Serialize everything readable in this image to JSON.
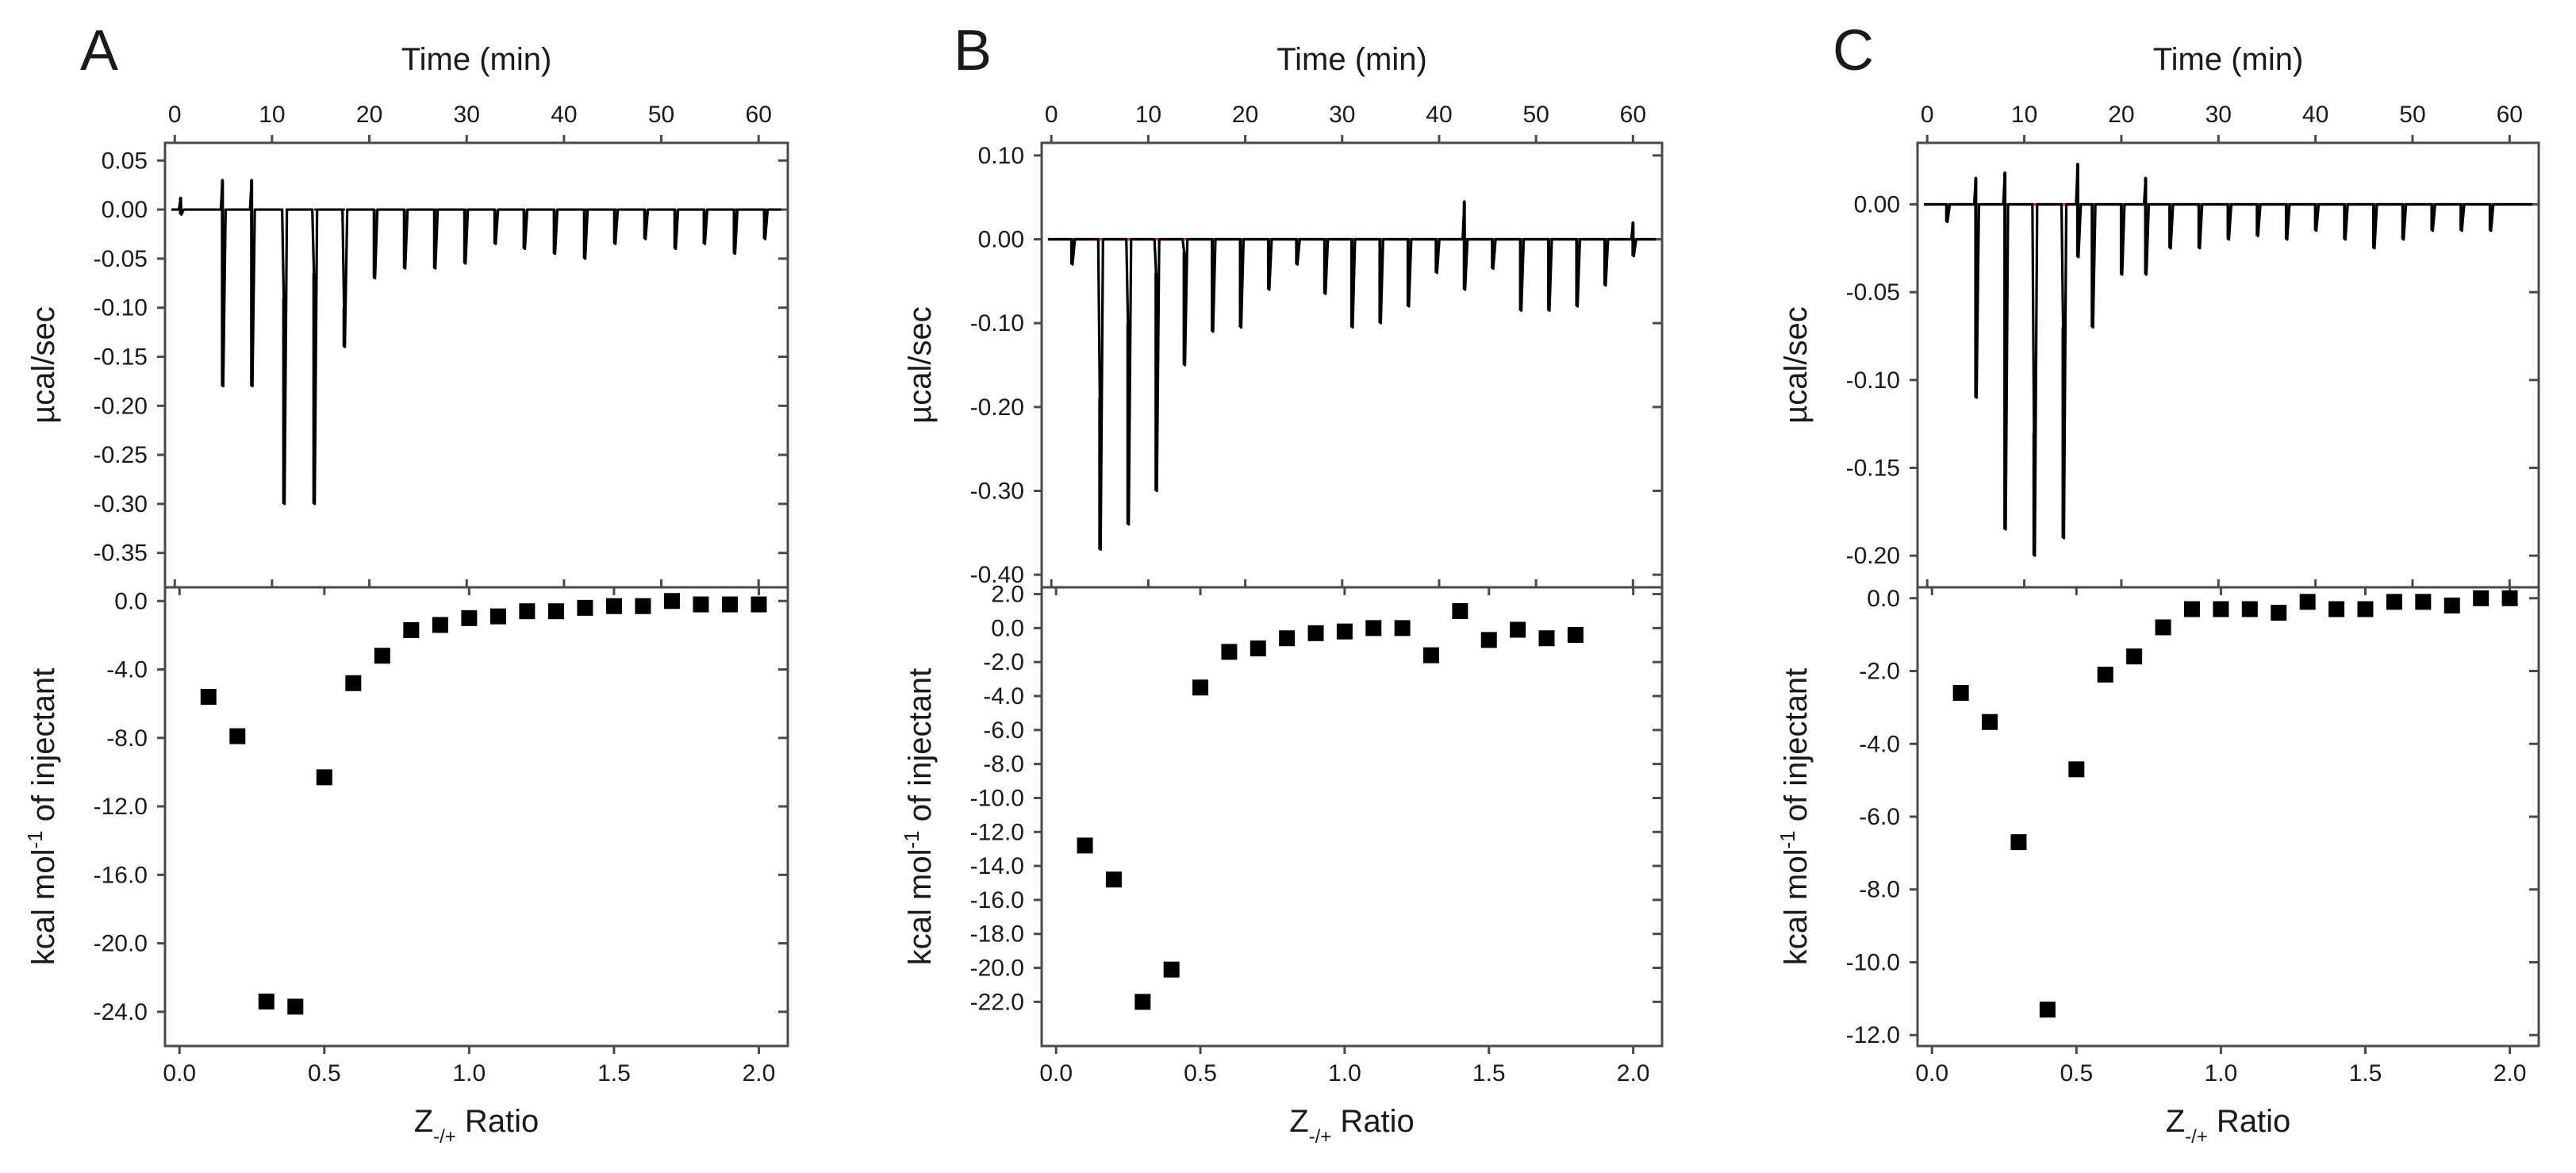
{
  "colors": {
    "data": "#000000",
    "axis": "#4a4a4a",
    "baseline_red": "#ff2a2a",
    "baseline_dotted": "#000000"
  },
  "chart_data": [
    {
      "panel": "A",
      "type": "line",
      "title": "",
      "xlabel": "Time (min)",
      "ylabel": "µcal/sec",
      "xlim": [
        -1,
        63
      ],
      "ylim": [
        -0.385,
        0.068
      ],
      "xticks": [
        0,
        10,
        20,
        30,
        40,
        50,
        60
      ],
      "xtick_labels": [
        "0",
        "10",
        "20",
        "30",
        "40",
        "50",
        "60"
      ],
      "yticks": [
        0.05,
        0.0,
        -0.05,
        -0.1,
        -0.15,
        -0.2,
        -0.25,
        -0.3,
        -0.35
      ],
      "ytick_labels": [
        "0.05",
        "0.00",
        "-0.05",
        "-0.10",
        "-0.15",
        "-0.20",
        "-0.25",
        "-0.30",
        "-0.35"
      ],
      "baseline": {
        "y": 0.0,
        "style": "dotted",
        "color": "#000000"
      },
      "injections": [
        {
          "t": 0.6,
          "min": -0.005,
          "max": 0.012
        },
        {
          "t": 4.9,
          "min": -0.18,
          "max": 0.03
        },
        {
          "t": 7.9,
          "min": -0.18,
          "max": 0.03
        },
        {
          "t": 11.2,
          "min": -0.3,
          "max": -0.09
        },
        {
          "t": 14.3,
          "min": -0.3,
          "max": -0.065
        },
        {
          "t": 17.4,
          "min": -0.14,
          "max": -0.1
        },
        {
          "t": 20.5,
          "min": -0.07,
          "max": 0.0
        },
        {
          "t": 23.6,
          "min": -0.06,
          "max": 0.0
        },
        {
          "t": 26.7,
          "min": -0.06,
          "max": 0.0
        },
        {
          "t": 29.8,
          "min": -0.055,
          "max": 0.0
        },
        {
          "t": 32.9,
          "min": -0.035,
          "max": 0.0
        },
        {
          "t": 35.9,
          "min": -0.04,
          "max": 0.0
        },
        {
          "t": 39.0,
          "min": -0.045,
          "max": 0.0
        },
        {
          "t": 42.1,
          "min": -0.05,
          "max": 0.0
        },
        {
          "t": 45.2,
          "min": -0.035,
          "max": 0.0
        },
        {
          "t": 48.3,
          "min": -0.03,
          "max": 0.0
        },
        {
          "t": 51.4,
          "min": -0.04,
          "max": 0.0
        },
        {
          "t": 54.4,
          "min": -0.035,
          "max": 0.0
        },
        {
          "t": 57.5,
          "min": -0.045,
          "max": 0.0
        },
        {
          "t": 60.6,
          "min": -0.03,
          "max": 0.0
        }
      ],
      "binding": {
        "xlabel": "Z-/+ Ratio",
        "ylabel": "kcal mol-1 of injectant",
        "xlim": [
          -0.05,
          2.1
        ],
        "ylim": [
          -26.0,
          0.8
        ],
        "xticks": [
          0.0,
          0.5,
          1.0,
          1.5,
          2.0
        ],
        "xtick_labels": [
          "0.0",
          "0.5",
          "1.0",
          "1.5",
          "2.0"
        ],
        "yticks": [
          0.0,
          -4.0,
          -8.0,
          -12.0,
          -16.0,
          -20.0,
          -24.0
        ],
        "ytick_labels": [
          "0.0",
          "-4.0",
          "-8.0",
          "-12.0",
          "-16.0",
          "-20.0",
          "-24.0"
        ],
        "x": [
          0.1,
          0.2,
          0.3,
          0.4,
          0.5,
          0.6,
          0.7,
          0.8,
          0.9,
          1.0,
          1.1,
          1.2,
          1.3,
          1.4,
          1.5,
          1.6,
          1.7,
          1.8,
          1.9,
          2.0
        ],
        "y": [
          -5.6,
          -7.9,
          -23.4,
          -23.7,
          -10.3,
          -4.8,
          -3.2,
          -1.7,
          -1.4,
          -1.0,
          -0.9,
          -0.6,
          -0.6,
          -0.4,
          -0.3,
          -0.3,
          0.0,
          -0.2,
          -0.2,
          -0.2
        ]
      }
    },
    {
      "panel": "B",
      "type": "line",
      "title": "",
      "xlabel": "Time (min)",
      "ylabel": "µcal/sec",
      "xlim": [
        -1,
        63
      ],
      "ylim": [
        -0.415,
        0.115
      ],
      "xticks": [
        0,
        10,
        20,
        30,
        40,
        50,
        60
      ],
      "xtick_labels": [
        "0",
        "10",
        "20",
        "30",
        "40",
        "50",
        "60"
      ],
      "yticks": [
        0.1,
        0.0,
        -0.1,
        -0.2,
        -0.3,
        -0.4
      ],
      "ytick_labels": [
        "0.10",
        "0.00",
        "-0.10",
        "-0.20",
        "-0.30",
        "-0.40"
      ],
      "baseline": {
        "y": 0.0,
        "style": "solid",
        "color": "#ff2a2a"
      },
      "injections": [
        {
          "t": 2.1,
          "min": -0.03,
          "max": 0.0
        },
        {
          "t": 5.0,
          "min": -0.37,
          "max": -0.19
        },
        {
          "t": 7.9,
          "min": -0.34,
          "max": -0.1
        },
        {
          "t": 10.8,
          "min": -0.3,
          "max": -0.04
        },
        {
          "t": 13.7,
          "min": -0.15,
          "max": -0.015
        },
        {
          "t": 16.6,
          "min": -0.11,
          "max": 0.0
        },
        {
          "t": 19.5,
          "min": -0.105,
          "max": 0.0
        },
        {
          "t": 22.4,
          "min": -0.06,
          "max": 0.0
        },
        {
          "t": 25.3,
          "min": -0.03,
          "max": 0.0
        },
        {
          "t": 28.2,
          "min": -0.065,
          "max": 0.0
        },
        {
          "t": 31.0,
          "min": -0.105,
          "max": 0.0
        },
        {
          "t": 33.9,
          "min": -0.1,
          "max": 0.0
        },
        {
          "t": 36.8,
          "min": -0.08,
          "max": 0.0
        },
        {
          "t": 39.7,
          "min": -0.04,
          "max": 0.0
        },
        {
          "t": 42.6,
          "min": -0.06,
          "max": 0.045
        },
        {
          "t": 45.5,
          "min": -0.035,
          "max": 0.0
        },
        {
          "t": 48.4,
          "min": -0.085,
          "max": 0.0
        },
        {
          "t": 51.3,
          "min": -0.085,
          "max": 0.0
        },
        {
          "t": 54.2,
          "min": -0.08,
          "max": 0.0
        },
        {
          "t": 57.1,
          "min": -0.055,
          "max": 0.0
        },
        {
          "t": 60.0,
          "min": -0.02,
          "max": 0.02
        }
      ],
      "binding": {
        "xlabel": "Z-/+ Ratio",
        "ylabel": "kcal mol-1 of injectant",
        "xlim": [
          -0.05,
          2.1
        ],
        "ylim": [
          -24.6,
          2.4
        ],
        "xticks": [
          0.0,
          0.5,
          1.0,
          1.5,
          2.0
        ],
        "xtick_labels": [
          "0.0",
          "0.5",
          "1.0",
          "1.5",
          "2.0"
        ],
        "yticks": [
          2.0,
          0.0,
          -2.0,
          -4.0,
          -6.0,
          -8.0,
          -10.0,
          -12.0,
          -14.0,
          -16.0,
          -18.0,
          -20.0,
          -22.0
        ],
        "ytick_labels": [
          "2.0",
          "0.0",
          "-2.0",
          "-4.0",
          "-6.0",
          "-8.0",
          "-10.0",
          "-12.0",
          "-14.0",
          "-16.0",
          "-18.0",
          "-20.0",
          "-22.0"
        ],
        "x": [
          0.1,
          0.2,
          0.3,
          0.4,
          0.5,
          0.6,
          0.7,
          0.8,
          0.9,
          1.0,
          1.1,
          1.2,
          1.3,
          1.4,
          1.5,
          1.6,
          1.7,
          1.8
        ],
        "y": [
          -12.8,
          -14.8,
          -22.0,
          -20.1,
          -3.5,
          -1.4,
          -1.2,
          -0.6,
          -0.3,
          -0.2,
          0.0,
          0.0,
          -1.6,
          1.0,
          -0.7,
          -0.1,
          -0.6,
          -0.4
        ]
      }
    },
    {
      "panel": "C",
      "type": "line",
      "title": "",
      "xlabel": "Time (min)",
      "ylabel": "µcal/sec",
      "xlim": [
        -1,
        63
      ],
      "ylim": [
        -0.218,
        0.035
      ],
      "xticks": [
        0,
        10,
        20,
        30,
        40,
        50,
        60
      ],
      "xtick_labels": [
        "0",
        "10",
        "20",
        "30",
        "40",
        "50",
        "60"
      ],
      "yticks": [
        0.0,
        -0.05,
        -0.1,
        -0.15,
        -0.2
      ],
      "ytick_labels": [
        "0.00",
        "-0.05",
        "-0.10",
        "-0.15",
        "-0.20"
      ],
      "baseline": {
        "y": 0.0,
        "style": "solid",
        "color": "#ff2a2a"
      },
      "injections": [
        {
          "t": 2.0,
          "min": -0.01,
          "max": 0.0
        },
        {
          "t": 5.0,
          "min": -0.11,
          "max": 0.015
        },
        {
          "t": 8.0,
          "min": -0.185,
          "max": 0.018
        },
        {
          "t": 11.0,
          "min": -0.2,
          "max": -0.13
        },
        {
          "t": 14.0,
          "min": -0.19,
          "max": -0.07
        },
        {
          "t": 15.5,
          "min": -0.03,
          "max": 0.023
        },
        {
          "t": 17.0,
          "min": -0.07,
          "max": 0.0
        },
        {
          "t": 20.0,
          "min": -0.04,
          "max": 0.0
        },
        {
          "t": 22.5,
          "min": -0.04,
          "max": 0.015
        },
        {
          "t": 25.0,
          "min": -0.025,
          "max": 0.0
        },
        {
          "t": 28.0,
          "min": -0.025,
          "max": 0.0
        },
        {
          "t": 31.0,
          "min": -0.02,
          "max": 0.0
        },
        {
          "t": 34.0,
          "min": -0.018,
          "max": 0.0
        },
        {
          "t": 37.0,
          "min": -0.02,
          "max": 0.0
        },
        {
          "t": 40.0,
          "min": -0.015,
          "max": 0.0
        },
        {
          "t": 43.0,
          "min": -0.02,
          "max": 0.0
        },
        {
          "t": 46.0,
          "min": -0.025,
          "max": 0.0
        },
        {
          "t": 49.0,
          "min": -0.02,
          "max": 0.0
        },
        {
          "t": 52.0,
          "min": -0.015,
          "max": 0.0
        },
        {
          "t": 55.0,
          "min": -0.015,
          "max": 0.0
        },
        {
          "t": 58.0,
          "min": -0.015,
          "max": 0.0
        }
      ],
      "binding": {
        "xlabel": "Z-/+ Ratio",
        "ylabel": "kcal mol-1 of injectant",
        "xlim": [
          -0.05,
          2.1
        ],
        "ylim": [
          -12.3,
          0.3
        ],
        "xticks": [
          0.0,
          0.5,
          1.0,
          1.5,
          2.0
        ],
        "xtick_labels": [
          "0.0",
          "0.5",
          "1.0",
          "1.5",
          "2.0"
        ],
        "yticks": [
          0.0,
          -2.0,
          -4.0,
          -6.0,
          -8.0,
          -10.0,
          -12.0
        ],
        "ytick_labels": [
          "0.0",
          "-2.0",
          "-4.0",
          "-6.0",
          "-8.0",
          "-10.0",
          "-12.0"
        ],
        "x": [
          0.1,
          0.2,
          0.3,
          0.4,
          0.5,
          0.6,
          0.7,
          0.8,
          0.9,
          1.0,
          1.1,
          1.2,
          1.3,
          1.4,
          1.5,
          1.6,
          1.7,
          1.8,
          1.9,
          2.0
        ],
        "y": [
          -2.6,
          -3.4,
          -6.7,
          -11.3,
          -4.7,
          -2.1,
          -1.6,
          -0.8,
          -0.3,
          -0.3,
          -0.3,
          -0.4,
          -0.1,
          -0.3,
          -0.3,
          -0.1,
          -0.1,
          -0.2,
          0.0,
          0.0
        ]
      }
    }
  ]
}
